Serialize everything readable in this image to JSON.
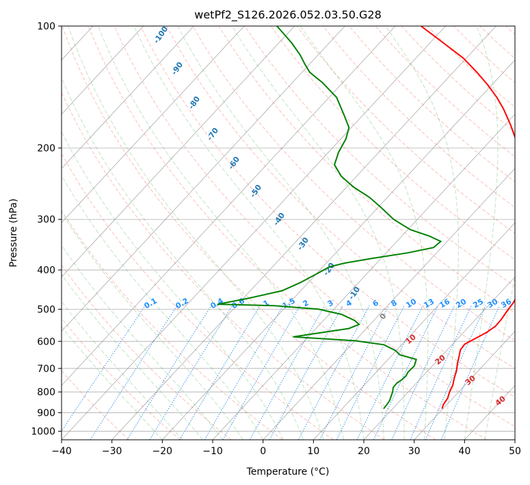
{
  "chart_data": {
    "type": "line",
    "title": "wetPf2_S126.2026.052.03.50.G28",
    "xlabel": "Temperature (°C)",
    "ylabel": "Pressure (hPa)",
    "xlim": [
      -40,
      50
    ],
    "ylim": [
      1050,
      100
    ],
    "y_scale": "log",
    "x_ticks": [
      -40,
      -30,
      -20,
      -10,
      0,
      10,
      20,
      30,
      40,
      50
    ],
    "y_ticks": [
      100,
      200,
      300,
      400,
      500,
      600,
      700,
      800,
      900,
      1000
    ],
    "grid": true,
    "colors": {
      "temperature": "#ff0000",
      "dewpoint": "#008000",
      "isotherm": "#808080",
      "dry_adiabat": "#fa8072",
      "moist_adiabat": "#4caf50",
      "mixing_ratio": "#1e88e5",
      "lcl_line": "#d2b48c",
      "label_blue": "#1f77b4",
      "label_red": "#d62728",
      "label_mix": "#1e90ff"
    },
    "series": [
      {
        "key": "temperature",
        "points": [
          {
            "p": 880,
            "t": 29.8
          },
          {
            "p": 860,
            "t": 29.3
          },
          {
            "p": 830,
            "t": 29.0
          },
          {
            "p": 800,
            "t": 28.2
          },
          {
            "p": 770,
            "t": 27.6
          },
          {
            "p": 740,
            "t": 26.6
          },
          {
            "p": 710,
            "t": 25.7
          },
          {
            "p": 680,
            "t": 24.5
          },
          {
            "p": 650,
            "t": 23.4
          },
          {
            "p": 630,
            "t": 22.6
          },
          {
            "p": 610,
            "t": 22.4
          },
          {
            "p": 590,
            "t": 23.5
          },
          {
            "p": 570,
            "t": 24.6
          },
          {
            "p": 550,
            "t": 25.2
          },
          {
            "p": 530,
            "t": 25.1
          },
          {
            "p": 505,
            "t": 24.7
          },
          {
            "p": 480,
            "t": 24.4
          },
          {
            "p": 460,
            "t": 23.7
          },
          {
            "p": 440,
            "t": 22.5
          },
          {
            "p": 420,
            "t": 21.0
          },
          {
            "p": 400,
            "t": 19.6
          },
          {
            "p": 380,
            "t": 18.6
          },
          {
            "p": 360,
            "t": 17.4
          },
          {
            "p": 345,
            "t": 15.5
          },
          {
            "p": 330,
            "t": 14.5
          },
          {
            "p": 310,
            "t": 12.8
          },
          {
            "p": 290,
            "t": 10.5
          },
          {
            "p": 270,
            "t": 7.9
          },
          {
            "p": 250,
            "t": 5.0
          },
          {
            "p": 230,
            "t": 1.8
          },
          {
            "p": 210,
            "t": -1.6
          },
          {
            "p": 190,
            "t": -5.3
          },
          {
            "p": 175,
            "t": -9.0
          },
          {
            "p": 160,
            "t": -13.3
          },
          {
            "p": 150,
            "t": -16.7
          },
          {
            "p": 140,
            "t": -20.7
          },
          {
            "p": 130,
            "t": -25.3
          },
          {
            "p": 120,
            "t": -30.6
          },
          {
            "p": 110,
            "t": -37.4
          },
          {
            "p": 100,
            "t": -44.9
          }
        ]
      },
      {
        "key": "dewpoint",
        "points": [
          {
            "p": 880,
            "t": 18.2
          },
          {
            "p": 860,
            "t": 18.1
          },
          {
            "p": 840,
            "t": 17.9
          },
          {
            "p": 820,
            "t": 17.4
          },
          {
            "p": 800,
            "t": 16.9
          },
          {
            "p": 780,
            "t": 16.2
          },
          {
            "p": 760,
            "t": 16.1
          },
          {
            "p": 745,
            "t": 16.5
          },
          {
            "p": 730,
            "t": 16.6
          },
          {
            "p": 715,
            "t": 16.3
          },
          {
            "p": 690,
            "t": 16.4
          },
          {
            "p": 665,
            "t": 15.6
          },
          {
            "p": 648,
            "t": 11.5
          },
          {
            "p": 632,
            "t": 9.8
          },
          {
            "p": 612,
            "t": 6.5
          },
          {
            "p": 598,
            "t": 0.0
          },
          {
            "p": 585,
            "t": -13.0
          },
          {
            "p": 575,
            "t": -9.5
          },
          {
            "p": 558,
            "t": -3.5
          },
          {
            "p": 545,
            "t": -2.2
          },
          {
            "p": 533,
            "t": -3.8
          },
          {
            "p": 515,
            "t": -7.5
          },
          {
            "p": 500,
            "t": -13.0
          },
          {
            "p": 490,
            "t": -22.5
          },
          {
            "p": 486,
            "t": -34.0
          },
          {
            "p": 470,
            "t": -29.0
          },
          {
            "p": 450,
            "t": -23.7
          },
          {
            "p": 430,
            "t": -21.6
          },
          {
            "p": 410,
            "t": -20.0
          },
          {
            "p": 393,
            "t": -18.7
          },
          {
            "p": 385,
            "t": -16.5
          },
          {
            "p": 375,
            "t": -12.0
          },
          {
            "p": 363,
            "t": -5.8
          },
          {
            "p": 352,
            "t": -1.6
          },
          {
            "p": 340,
            "t": -1.3
          },
          {
            "p": 330,
            "t": -4.5
          },
          {
            "p": 318,
            "t": -9.5
          },
          {
            "p": 300,
            "t": -14.7
          },
          {
            "p": 280,
            "t": -19.5
          },
          {
            "p": 265,
            "t": -23.5
          },
          {
            "p": 250,
            "t": -28.5
          },
          {
            "p": 235,
            "t": -33.0
          },
          {
            "p": 220,
            "t": -36.5
          },
          {
            "p": 205,
            "t": -38.0
          },
          {
            "p": 190,
            "t": -39.0
          },
          {
            "p": 178,
            "t": -40.5
          },
          {
            "p": 165,
            "t": -44.0
          },
          {
            "p": 150,
            "t": -48.5
          },
          {
            "p": 138,
            "t": -54.0
          },
          {
            "p": 130,
            "t": -58.5
          },
          {
            "p": 124,
            "t": -61.0
          },
          {
            "p": 118,
            "t": -63.5
          },
          {
            "p": 110,
            "t": -67.5
          },
          {
            "p": 100,
            "t": -73.5
          }
        ]
      }
    ],
    "moist_adiabat_labels": [
      "-100",
      "-90",
      "-80",
      "-70",
      "-60",
      "-50",
      "-40",
      "-30",
      "-20",
      "-10",
      "0"
    ],
    "dry_adiabat_labels": [
      "10",
      "20",
      "30",
      "40"
    ],
    "mixing_ratio_labels": [
      "0.1",
      "0.2",
      "0.4",
      "0.6",
      "1",
      "1.5",
      "2",
      "3",
      "4",
      "6",
      "8",
      "10",
      "13",
      "16",
      "20",
      "25",
      "30",
      "36"
    ]
  }
}
